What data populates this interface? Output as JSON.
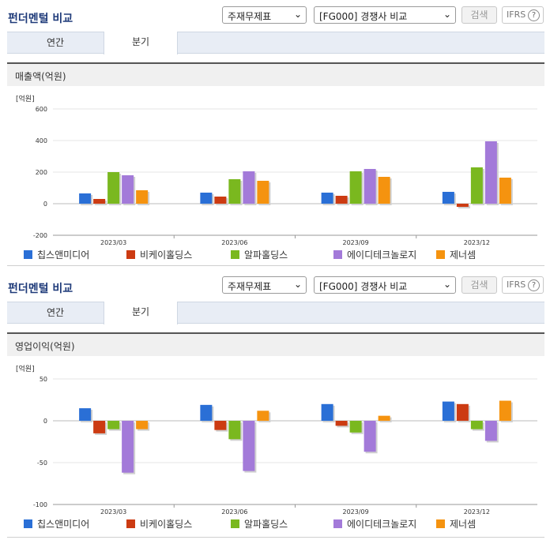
{
  "panels": [
    {
      "title": "펀더멘털 비교",
      "select1": "주재무제표",
      "select2": "[FG000] 경쟁사 비교",
      "search_label": "검색",
      "ifrs_label": "IFRS",
      "tabs": [
        "연간",
        "분기"
      ],
      "active_tab": "분기",
      "section_title": "매출액(억원)",
      "unit": "[억원]"
    },
    {
      "title": "펀더멘털 비교",
      "select1": "주재무제표",
      "select2": "[FG000] 경쟁사 비교",
      "search_label": "검색",
      "ifrs_label": "IFRS",
      "tabs": [
        "연간",
        "분기"
      ],
      "active_tab": "분기",
      "section_title": "영업이익(억원)",
      "unit": "[억원]"
    }
  ],
  "chart_data": [
    {
      "type": "bar",
      "title": "매출액(억원)",
      "ylabel": "[억원]",
      "categories": [
        "2023/03",
        "2023/06",
        "2023/09",
        "2023/12"
      ],
      "ylim": [
        -200,
        600
      ],
      "yticks": [
        -200,
        0,
        200,
        400,
        600
      ],
      "series": [
        {
          "name": "칩스앤미디어",
          "color": "#2a6fd6",
          "values": [
            65,
            70,
            70,
            75
          ]
        },
        {
          "name": "비케이홀딩스",
          "color": "#cc3b12",
          "values": [
            30,
            45,
            50,
            -20
          ]
        },
        {
          "name": "알파홀딩스",
          "color": "#7ab81f",
          "values": [
            200,
            155,
            205,
            230
          ]
        },
        {
          "name": "에이디테크놀로지",
          "color": "#a37ad9",
          "values": [
            180,
            205,
            220,
            395
          ]
        },
        {
          "name": "제너셈",
          "color": "#f5930f",
          "values": [
            85,
            145,
            170,
            165
          ]
        }
      ],
      "legend": "bottom",
      "grid": true
    },
    {
      "type": "bar",
      "title": "영업이익(억원)",
      "ylabel": "[억원]",
      "categories": [
        "2023/03",
        "2023/06",
        "2023/09",
        "2023/12"
      ],
      "ylim": [
        -100,
        50
      ],
      "yticks": [
        -100,
        -50,
        0,
        50
      ],
      "series": [
        {
          "name": "칩스앤미디어",
          "color": "#2a6fd6",
          "values": [
            15,
            19,
            20,
            23
          ]
        },
        {
          "name": "비케이홀딩스",
          "color": "#cc3b12",
          "values": [
            -15,
            -11,
            -6,
            20
          ]
        },
        {
          "name": "알파홀딩스",
          "color": "#7ab81f",
          "values": [
            -10,
            -22,
            -14,
            -10
          ]
        },
        {
          "name": "에이디테크놀로지",
          "color": "#a37ad9",
          "values": [
            -62,
            -60,
            -37,
            -24
          ]
        },
        {
          "name": "제너셈",
          "color": "#f5930f",
          "values": [
            -10,
            12,
            6,
            24
          ]
        }
      ],
      "legend": "bottom",
      "grid": true
    }
  ]
}
